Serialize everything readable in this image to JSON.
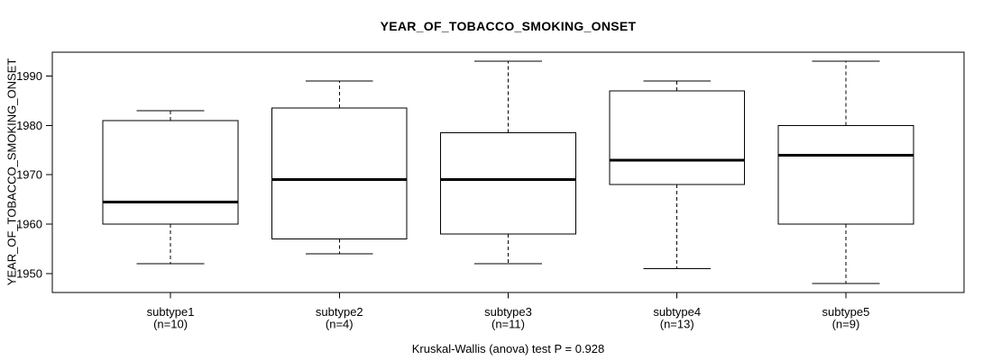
{
  "chart_data": {
    "type": "boxplot",
    "title": "YEAR_OF_TOBACCO_SMOKING_ONSET",
    "ylabel": "YEAR_OF_TOBACCO_SMOKING_ONSET",
    "xlabel": "",
    "annotation": "Kruskal-Wallis (anova) test P = 0.928",
    "yticks": [
      1950,
      1960,
      1970,
      1980,
      1990
    ],
    "ylim": [
      1946.2,
      1994.8
    ],
    "grid": false,
    "line_color": "#000000",
    "box_fill": "#ffffff",
    "groups": [
      {
        "label": "subtype1",
        "n_label": "(n=10)",
        "whisker_low": 1952,
        "q1": 1960,
        "median": 1964.5,
        "q3": 1981,
        "whisker_high": 1983
      },
      {
        "label": "subtype2",
        "n_label": "(n=4)",
        "whisker_low": 1954,
        "q1": 1957,
        "median": 1969,
        "q3": 1983.5,
        "whisker_high": 1989
      },
      {
        "label": "subtype3",
        "n_label": "(n=11)",
        "whisker_low": 1952,
        "q1": 1958,
        "median": 1969,
        "q3": 1978.5,
        "whisker_high": 1993
      },
      {
        "label": "subtype4",
        "n_label": "(n=13)",
        "whisker_low": 1951,
        "q1": 1968,
        "median": 1973,
        "q3": 1987,
        "whisker_high": 1989
      },
      {
        "label": "subtype5",
        "n_label": "(n=9)",
        "whisker_low": 1948,
        "q1": 1960,
        "median": 1974,
        "q3": 1980,
        "whisker_high": 1993
      }
    ]
  }
}
